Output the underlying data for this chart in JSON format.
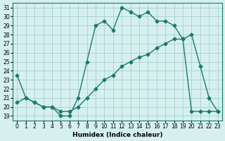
{
  "line1_x": [
    0,
    1,
    2,
    3,
    4,
    5,
    6,
    7,
    8,
    9,
    10,
    11,
    12,
    13,
    14,
    15,
    16,
    17,
    18,
    19,
    20,
    21,
    22,
    23
  ],
  "line1_y": [
    23.5,
    21.0,
    20.5,
    20.0,
    20.0,
    19.0,
    19.0,
    21.0,
    25.0,
    29.0,
    29.5,
    28.5,
    31.0,
    30.5,
    30.0,
    30.5,
    29.5,
    29.5,
    29.0,
    27.5,
    28.0,
    24.5,
    21.0,
    19.5
  ],
  "line2_x": [
    0,
    1,
    2,
    3,
    4,
    5,
    6,
    7,
    8,
    9,
    10,
    11,
    12,
    13,
    14,
    15,
    16,
    17,
    18,
    19,
    20,
    21,
    22,
    23
  ],
  "line2_y": [
    20.5,
    21.0,
    20.5,
    20.0,
    20.0,
    19.5,
    19.5,
    20.0,
    21.0,
    22.0,
    23.0,
    23.5,
    24.5,
    25.0,
    25.5,
    25.8,
    26.5,
    27.0,
    27.5,
    27.5,
    19.5,
    19.5,
    19.5,
    19.5
  ],
  "line_color": "#1a7a6e",
  "bg_color": "#d6f0f0",
  "grid_color": "#a0c8c8",
  "xlabel": "Humidex (Indice chaleur)",
  "xlim": [
    -0.5,
    23.5
  ],
  "ylim": [
    18.5,
    31.5
  ],
  "yticks": [
    19,
    20,
    21,
    22,
    23,
    24,
    25,
    26,
    27,
    28,
    29,
    30,
    31
  ],
  "xticks": [
    0,
    1,
    2,
    3,
    4,
    5,
    6,
    7,
    8,
    9,
    10,
    11,
    12,
    13,
    14,
    15,
    16,
    17,
    18,
    19,
    20,
    21,
    22,
    23
  ]
}
